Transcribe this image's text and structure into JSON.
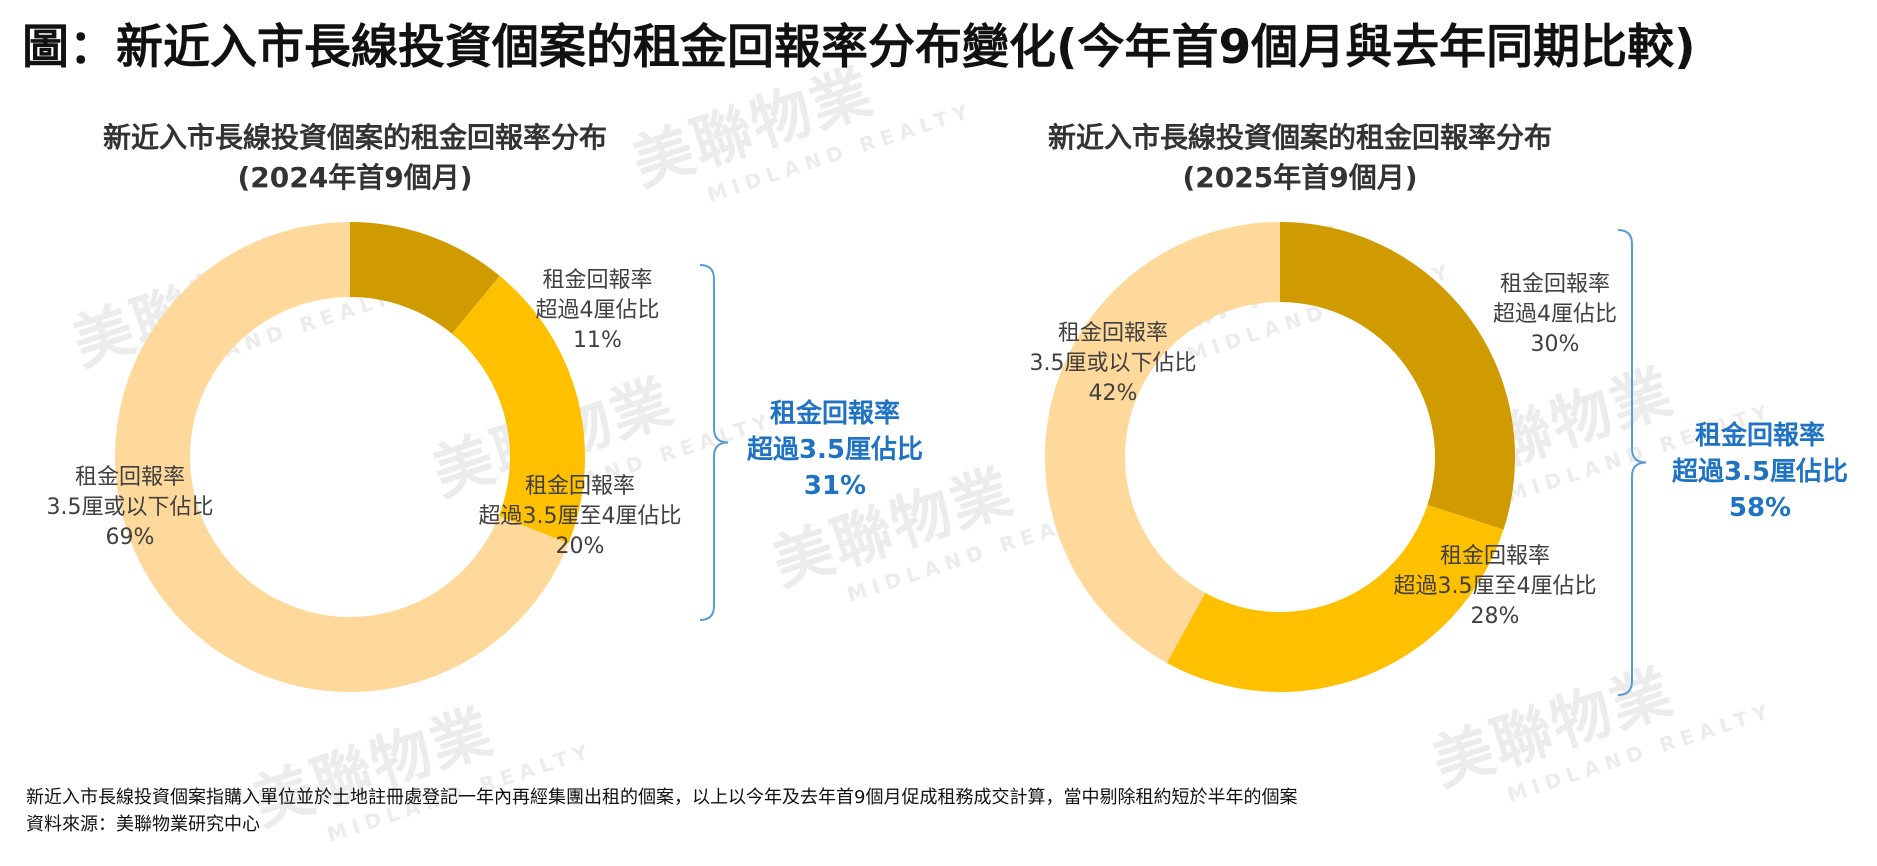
{
  "title": "圖：新近入市長線投資個案的租金回報率分布變化(今年首9個月與去年同期比較)",
  "watermark": {
    "cn": "美聯物業",
    "en": "MIDLAND REALTY"
  },
  "chart_data": [
    {
      "type": "pie",
      "donut": true,
      "title_line1": "新近入市長線投資個案的租金回報率分布",
      "title_line2": "(2024年首9個月)",
      "slices": [
        {
          "label_line1": "租金回報率",
          "label_line2": "超過4厘佔比",
          "value": 11,
          "value_label": "11%",
          "color": "#d09b00"
        },
        {
          "label_line1": "租金回報率",
          "label_line2": "超過3.5厘至4厘佔比",
          "value": 20,
          "value_label": "20%",
          "color": "#ffc000"
        },
        {
          "label_line1": "租金回報率",
          "label_line2": "3.5厘或以下佔比",
          "value": 69,
          "value_label": "69%",
          "color": "#ffd99b"
        }
      ],
      "summary": {
        "line1": "租金回報率",
        "line2": "超過3.5厘佔比",
        "value_label": "31%",
        "value": 31
      }
    },
    {
      "type": "pie",
      "donut": true,
      "title_line1": "新近入市長線投資個案的租金回報率分布",
      "title_line2": "(2025年首9個月)",
      "slices": [
        {
          "label_line1": "租金回報率",
          "label_line2": "超過4厘佔比",
          "value": 30,
          "value_label": "30%",
          "color": "#d09b00"
        },
        {
          "label_line1": "租金回報率",
          "label_line2": "超過3.5厘至4厘佔比",
          "value": 28,
          "value_label": "28%",
          "color": "#ffc000"
        },
        {
          "label_line1": "租金回報率",
          "label_line2": "3.5厘或以下佔比",
          "value": 42,
          "value_label": "42%",
          "color": "#ffd99b"
        }
      ],
      "summary": {
        "line1": "租金回報率",
        "line2": "超過3.5厘佔比",
        "value_label": "58%",
        "value": 58
      }
    }
  ],
  "footnote": {
    "line1": "新近入市長線投資個案指購入單位並於土地註冊處登記一年內再經集團出租的個案，以上以今年及去年首9個月促成租務成交計算，當中剔除租約短於半年的個案",
    "line2": "資料來源：美聯物業研究中心"
  },
  "colors": {
    "summary_text": "#1f73c4",
    "bracket": "#5b9bd5"
  }
}
